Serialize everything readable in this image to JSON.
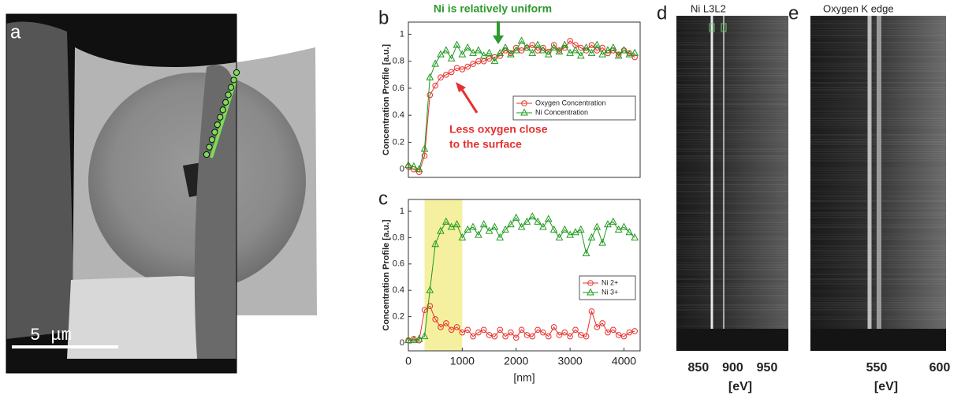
{
  "panels": {
    "a": {
      "label": "a",
      "scale_bar": "5 μm"
    }
  },
  "chart_data": [
    {
      "type": "line",
      "label": "b",
      "ylabel": "Concentration Profile [a.u.]",
      "x": [
        0,
        100,
        200,
        300,
        400,
        500,
        600,
        700,
        800,
        900,
        1000,
        1100,
        1200,
        1300,
        1400,
        1500,
        1600,
        1700,
        1800,
        1900,
        2000,
        2100,
        2200,
        2300,
        2400,
        2500,
        2600,
        2700,
        2800,
        2900,
        3000,
        3100,
        3200,
        3300,
        3400,
        3500,
        3600,
        3700,
        3800,
        3900,
        4000,
        4100,
        4200
      ],
      "xlim": [
        0,
        4300
      ],
      "ylim": [
        -0.06,
        1.09
      ],
      "yticks": [
        0,
        0.2,
        0.4,
        0.6,
        0.8,
        1
      ],
      "legend": "lower right",
      "series": [
        {
          "name": "Oxygen Concentration",
          "color": "#e8302a",
          "marker": "circle",
          "values": [
            0.02,
            0.0,
            -0.02,
            0.1,
            0.55,
            0.62,
            0.68,
            0.7,
            0.72,
            0.75,
            0.74,
            0.76,
            0.78,
            0.8,
            0.8,
            0.82,
            0.83,
            0.84,
            0.88,
            0.86,
            0.9,
            0.88,
            0.9,
            0.92,
            0.88,
            0.9,
            0.87,
            0.92,
            0.88,
            0.9,
            0.95,
            0.92,
            0.9,
            0.88,
            0.92,
            0.88,
            0.9,
            0.86,
            0.88,
            0.85,
            0.88,
            0.86,
            0.83
          ]
        },
        {
          "name": "Ni Concentration",
          "color": "#1e9a1e",
          "marker": "triangle",
          "values": [
            0.03,
            0.02,
            0.0,
            0.15,
            0.68,
            0.78,
            0.85,
            0.88,
            0.82,
            0.92,
            0.85,
            0.9,
            0.86,
            0.88,
            0.84,
            0.86,
            0.8,
            0.86,
            0.9,
            0.85,
            0.88,
            0.95,
            0.9,
            0.86,
            0.92,
            0.88,
            0.85,
            0.9,
            0.87,
            0.92,
            0.86,
            0.88,
            0.84,
            0.9,
            0.86,
            0.92,
            0.85,
            0.88,
            0.9,
            0.84,
            0.88,
            0.85,
            0.86
          ]
        }
      ],
      "annotations": [
        {
          "text": [
            "Ni is relatively uniform"
          ],
          "color": "#2e9a2e"
        },
        {
          "text": [
            "Less oxygen close",
            "to the surface"
          ],
          "color": "#e53030"
        }
      ]
    },
    {
      "type": "line",
      "label": "c",
      "ylabel": "Concentration Profile [a.u.]",
      "xlabel": "[nm]",
      "x": [
        0,
        100,
        200,
        300,
        400,
        500,
        600,
        700,
        800,
        900,
        1000,
        1100,
        1200,
        1300,
        1400,
        1500,
        1600,
        1700,
        1800,
        1900,
        2000,
        2100,
        2200,
        2300,
        2400,
        2500,
        2600,
        2700,
        2800,
        2900,
        3000,
        3100,
        3200,
        3300,
        3400,
        3500,
        3600,
        3700,
        3800,
        3900,
        4000,
        4100,
        4200
      ],
      "xlim": [
        0,
        4300
      ],
      "xticks": [
        0,
        1000,
        2000,
        3000,
        4000
      ],
      "ylim": [
        -0.06,
        1.09
      ],
      "yticks": [
        0,
        0.2,
        0.4,
        0.6,
        0.8,
        1
      ],
      "legend": "lower right",
      "highlight_x": [
        300,
        1000
      ],
      "highlight_color": "#f5f0a0",
      "series": [
        {
          "name": "Ni 2+",
          "color": "#e8302a",
          "marker": "circle",
          "values": [
            0.02,
            0.03,
            0.02,
            0.25,
            0.28,
            0.18,
            0.12,
            0.15,
            0.1,
            0.12,
            0.08,
            0.1,
            0.05,
            0.08,
            0.1,
            0.06,
            0.05,
            0.1,
            0.05,
            0.08,
            0.04,
            0.1,
            0.06,
            0.05,
            0.1,
            0.08,
            0.05,
            0.12,
            0.06,
            0.08,
            0.05,
            0.1,
            0.06,
            0.05,
            0.24,
            0.12,
            0.15,
            0.08,
            0.1,
            0.06,
            0.05,
            0.08,
            0.09
          ]
        },
        {
          "name": "Ni 3+",
          "color": "#1e9a1e",
          "marker": "triangle",
          "values": [
            0.02,
            0.02,
            0.03,
            0.05,
            0.4,
            0.75,
            0.85,
            0.92,
            0.88,
            0.9,
            0.8,
            0.86,
            0.88,
            0.82,
            0.9,
            0.85,
            0.88,
            0.8,
            0.86,
            0.9,
            0.95,
            0.88,
            0.92,
            0.96,
            0.92,
            0.88,
            0.94,
            0.86,
            0.8,
            0.86,
            0.82,
            0.84,
            0.86,
            0.68,
            0.8,
            0.88,
            0.76,
            0.9,
            0.92,
            0.86,
            0.88,
            0.84,
            0.8
          ]
        }
      ]
    },
    {
      "type": "spectrum-image",
      "label": "d",
      "annotation": "Ni L3L2",
      "xlabel": "[eV]",
      "xlim": [
        818,
        981
      ],
      "xticks": [
        850,
        900,
        950
      ]
    },
    {
      "type": "spectrum-image",
      "label": "e",
      "annotation": "Oxygen K edge",
      "xlabel": "[eV]",
      "xlim": [
        497.5,
        605
      ],
      "xticks": [
        550,
        600
      ]
    }
  ]
}
